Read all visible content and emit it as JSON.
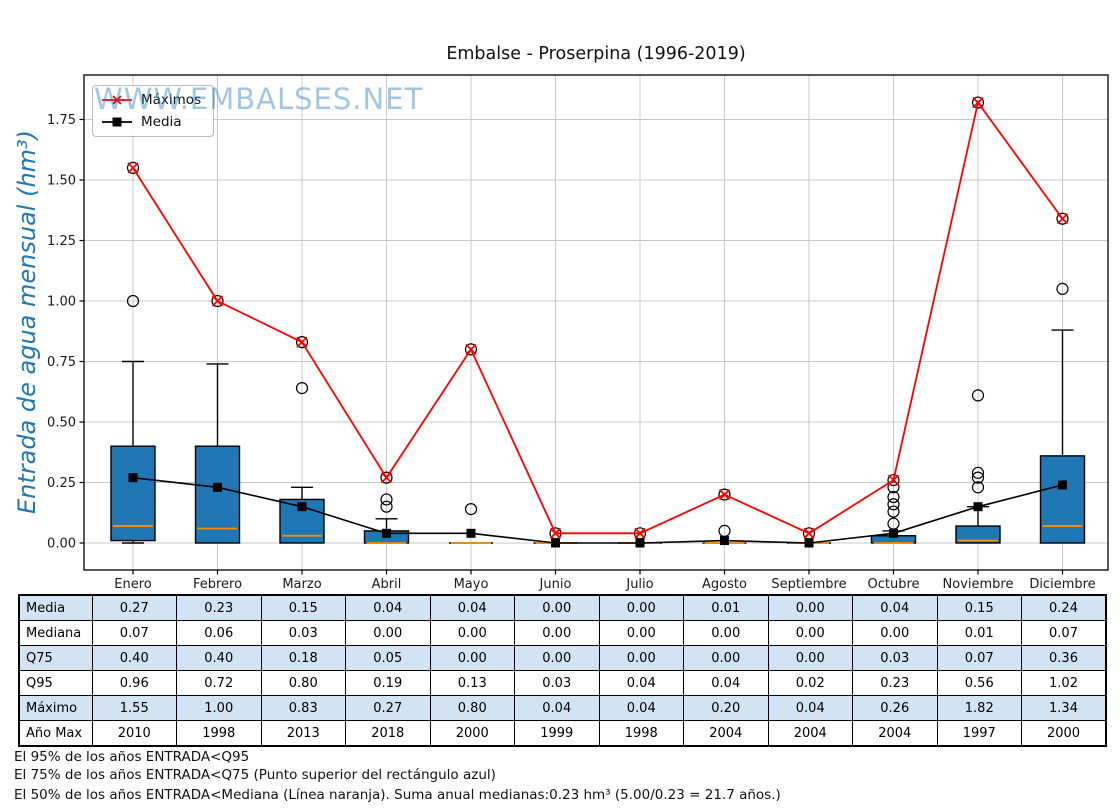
{
  "chart_data": {
    "type": "boxplot+line",
    "title": "Embalse - Proserpina (1996-2019)",
    "ylabel": "Entrada de agua mensual (hm³)",
    "categories": [
      "Enero",
      "Febrero",
      "Marzo",
      "Abril",
      "Mayo",
      "Junio",
      "Julio",
      "Agosto",
      "Septiembre",
      "Octubre",
      "Noviembre",
      "Diciembre"
    ],
    "y_ticks": [
      0.0,
      0.25,
      0.5,
      0.75,
      1.0,
      1.25,
      1.5,
      1.75
    ],
    "ylim": [
      -0.11,
      1.94
    ],
    "grid": true,
    "legend_position": "upper left",
    "boxes": [
      {
        "q1": 0.01,
        "median": 0.07,
        "q3": 0.4,
        "whisker_low": 0.0,
        "whisker_high": 0.75,
        "outliers": [
          1.0,
          1.55
        ]
      },
      {
        "q1": 0.0,
        "median": 0.06,
        "q3": 0.4,
        "whisker_low": 0.0,
        "whisker_high": 0.74,
        "outliers": [
          1.0
        ]
      },
      {
        "q1": 0.0,
        "median": 0.03,
        "q3": 0.18,
        "whisker_low": 0.0,
        "whisker_high": 0.23,
        "outliers": [
          0.64,
          0.83
        ]
      },
      {
        "q1": 0.0,
        "median": 0.0,
        "q3": 0.05,
        "whisker_low": 0.0,
        "whisker_high": 0.1,
        "outliers": [
          0.15,
          0.18,
          0.27
        ]
      },
      {
        "q1": 0.0,
        "median": 0.0,
        "q3": 0.0,
        "whisker_low": 0.0,
        "whisker_high": 0.0,
        "outliers": [
          0.14,
          0.8
        ]
      },
      {
        "q1": 0.0,
        "median": 0.0,
        "q3": 0.0,
        "whisker_low": 0.0,
        "whisker_high": 0.0,
        "outliers": [
          0.04
        ]
      },
      {
        "q1": 0.0,
        "median": 0.0,
        "q3": 0.0,
        "whisker_low": 0.0,
        "whisker_high": 0.0,
        "outliers": [
          0.04
        ]
      },
      {
        "q1": 0.0,
        "median": 0.0,
        "q3": 0.0,
        "whisker_low": 0.0,
        "whisker_high": 0.0,
        "outliers": [
          0.05,
          0.2
        ]
      },
      {
        "q1": 0.0,
        "median": 0.0,
        "q3": 0.0,
        "whisker_low": 0.0,
        "whisker_high": 0.0,
        "outliers": [
          0.04
        ]
      },
      {
        "q1": 0.0,
        "median": 0.0,
        "q3": 0.03,
        "whisker_low": 0.0,
        "whisker_high": 0.05,
        "outliers": [
          0.08,
          0.13,
          0.16,
          0.19,
          0.23,
          0.26
        ]
      },
      {
        "q1": 0.0,
        "median": 0.01,
        "q3": 0.07,
        "whisker_low": 0.0,
        "whisker_high": 0.15,
        "outliers": [
          0.23,
          0.27,
          0.29,
          0.61,
          1.82
        ]
      },
      {
        "q1": 0.0,
        "median": 0.07,
        "q3": 0.36,
        "whisker_low": 0.0,
        "whisker_high": 0.88,
        "outliers": [
          1.05,
          1.34
        ]
      }
    ],
    "series": [
      {
        "name": "Máximos",
        "color": "#ff0000",
        "marker": "x",
        "values": [
          1.55,
          1.0,
          0.83,
          0.27,
          0.8,
          0.04,
          0.04,
          0.2,
          0.04,
          0.26,
          1.82,
          1.34
        ]
      },
      {
        "name": "Media",
        "color": "#000000",
        "marker": "square",
        "values": [
          0.27,
          0.23,
          0.15,
          0.04,
          0.04,
          0.0,
          0.0,
          0.01,
          0.0,
          0.04,
          0.15,
          0.24
        ]
      }
    ]
  },
  "watermark": "WWW.EMBALSES.NET",
  "colors": {
    "box_fill": "#1f77b4",
    "box_edge": "#000000",
    "median_line": "#ff8c00",
    "maximos_line": "#ff0000",
    "media_line": "#000000",
    "grid": "#c8c8c8",
    "axis_text": "#1a1a1a",
    "ylabel": "#1f77b4",
    "watermark": "rgba(31,119,180,0.42)",
    "table_alt_row": "#d2e3f4"
  },
  "table": {
    "row_labels": [
      "Media",
      "Mediana",
      "Q75",
      "Q95",
      "Máximo",
      "Año Max"
    ],
    "rows": [
      [
        "0.27",
        "0.23",
        "0.15",
        "0.04",
        "0.04",
        "0.00",
        "0.00",
        "0.01",
        "0.00",
        "0.04",
        "0.15",
        "0.24"
      ],
      [
        "0.07",
        "0.06",
        "0.03",
        "0.00",
        "0.00",
        "0.00",
        "0.00",
        "0.00",
        "0.00",
        "0.00",
        "0.01",
        "0.07"
      ],
      [
        "0.40",
        "0.40",
        "0.18",
        "0.05",
        "0.00",
        "0.00",
        "0.00",
        "0.00",
        "0.00",
        "0.03",
        "0.07",
        "0.36"
      ],
      [
        "0.96",
        "0.72",
        "0.80",
        "0.19",
        "0.13",
        "0.03",
        "0.04",
        "0.04",
        "0.02",
        "0.23",
        "0.56",
        "1.02"
      ],
      [
        "1.55",
        "1.00",
        "0.83",
        "0.27",
        "0.80",
        "0.04",
        "0.04",
        "0.20",
        "0.04",
        "0.26",
        "1.82",
        "1.34"
      ],
      [
        "2010",
        "1998",
        "2013",
        "2018",
        "2000",
        "1999",
        "1998",
        "2004",
        "2004",
        "2004",
        "1997",
        "2000"
      ]
    ]
  },
  "footnotes": {
    "q95": "El 95% de los años ENTRADA<Q95",
    "q75": "El 75% de los años ENTRADA<Q75 (Punto superior del rectángulo azul)",
    "mediana": "El 50% de los años ENTRADA<Mediana (Línea naranja). Suma anual medianas:0.23 hm³ (5.00/0.23 = 21.7 años.)"
  }
}
